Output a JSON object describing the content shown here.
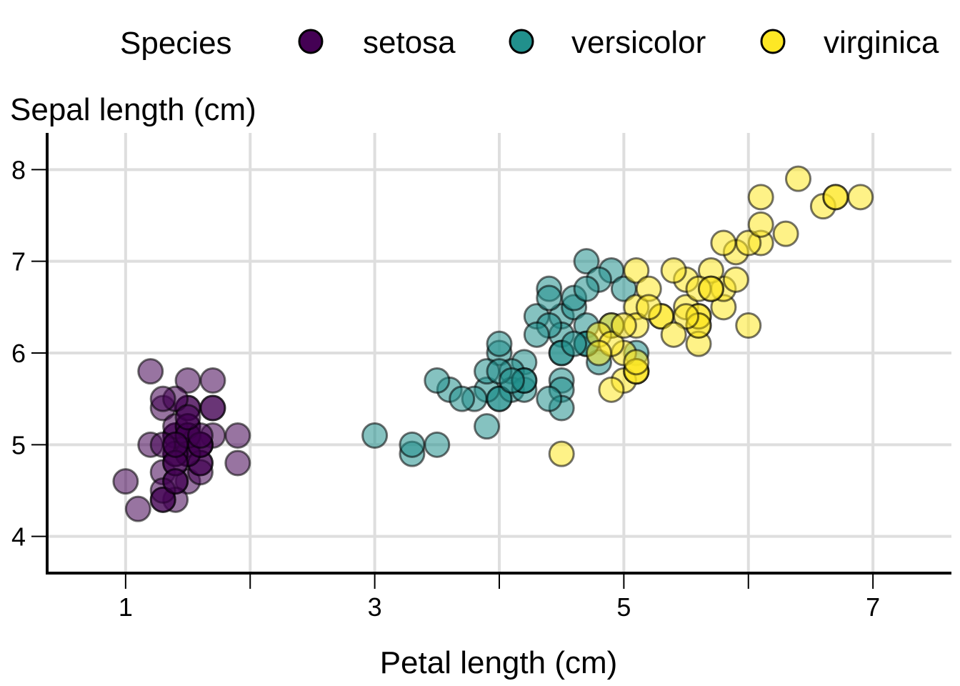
{
  "chart_data": {
    "type": "scatter",
    "xlabel": "Petal length (cm)",
    "ylabel": "Sepal length (cm)",
    "xlim": [
      0.37,
      7.63
    ],
    "ylim": [
      3.6,
      8.4
    ],
    "xticks": [
      1,
      3,
      5,
      7
    ],
    "xticks_minor": [
      2,
      4,
      6
    ],
    "yticks": [
      4,
      5,
      6,
      7,
      8
    ],
    "grid": true,
    "legend": {
      "title": "Species",
      "position": "top",
      "entries": [
        "setosa",
        "versicolor",
        "virginica"
      ]
    },
    "colors": {
      "setosa": "#440154",
      "versicolor": "#21908C",
      "virginica": "#FDE725"
    },
    "series": [
      {
        "name": "setosa",
        "x": [
          1.4,
          1.4,
          1.3,
          1.5,
          1.4,
          1.7,
          1.4,
          1.5,
          1.4,
          1.5,
          1.5,
          1.6,
          1.4,
          1.1,
          1.2,
          1.5,
          1.3,
          1.4,
          1.7,
          1.5,
          1.7,
          1.5,
          1.0,
          1.7,
          1.9,
          1.6,
          1.6,
          1.5,
          1.4,
          1.6,
          1.6,
          1.5,
          1.5,
          1.4,
          1.5,
          1.2,
          1.3,
          1.4,
          1.3,
          1.5,
          1.3,
          1.3,
          1.3,
          1.6,
          1.9,
          1.4,
          1.6,
          1.4,
          1.5,
          1.4
        ],
        "y": [
          5.1,
          4.9,
          4.7,
          4.6,
          5.0,
          5.4,
          4.6,
          5.0,
          4.4,
          4.9,
          5.4,
          4.8,
          4.8,
          4.3,
          5.8,
          5.7,
          5.4,
          5.1,
          5.7,
          5.1,
          5.4,
          5.1,
          4.6,
          5.1,
          4.8,
          5.0,
          5.0,
          5.2,
          5.2,
          4.7,
          4.8,
          5.4,
          5.2,
          5.5,
          4.9,
          5.0,
          5.5,
          4.9,
          4.4,
          5.1,
          5.0,
          4.5,
          4.4,
          5.0,
          5.1,
          4.8,
          5.1,
          4.6,
          5.3,
          5.0
        ]
      },
      {
        "name": "versicolor",
        "x": [
          4.7,
          4.5,
          4.9,
          4.0,
          4.6,
          4.5,
          4.7,
          3.3,
          4.6,
          3.9,
          3.5,
          4.2,
          4.0,
          4.7,
          3.6,
          4.4,
          4.5,
          4.1,
          4.5,
          3.9,
          4.8,
          4.0,
          4.9,
          4.7,
          4.3,
          4.4,
          4.8,
          5.0,
          4.5,
          3.5,
          3.8,
          3.7,
          3.9,
          5.1,
          4.5,
          4.5,
          4.7,
          4.4,
          4.1,
          4.0,
          4.4,
          4.6,
          4.0,
          3.3,
          4.2,
          4.2,
          4.2,
          4.3,
          3.0,
          4.1
        ],
        "y": [
          7.0,
          6.4,
          6.9,
          5.5,
          6.5,
          5.7,
          6.3,
          4.9,
          6.6,
          5.2,
          5.0,
          5.9,
          6.0,
          6.1,
          5.6,
          6.7,
          5.6,
          5.8,
          6.2,
          5.6,
          5.9,
          6.1,
          6.3,
          6.1,
          6.4,
          6.6,
          6.8,
          6.7,
          6.0,
          5.7,
          5.5,
          5.5,
          5.8,
          6.0,
          5.4,
          6.0,
          6.7,
          6.3,
          5.6,
          5.5,
          5.5,
          6.1,
          5.8,
          5.0,
          5.6,
          5.7,
          5.7,
          6.2,
          5.1,
          5.7
        ]
      },
      {
        "name": "virginica",
        "x": [
          6.0,
          5.1,
          5.9,
          5.6,
          5.8,
          6.6,
          4.5,
          6.3,
          5.8,
          6.1,
          5.1,
          5.3,
          5.5,
          5.0,
          5.1,
          5.3,
          5.5,
          6.7,
          6.9,
          5.0,
          5.7,
          4.9,
          6.7,
          4.9,
          5.7,
          6.0,
          4.8,
          4.9,
          5.6,
          5.8,
          6.1,
          6.4,
          5.6,
          5.1,
          5.6,
          6.1,
          5.6,
          5.5,
          4.8,
          5.4,
          5.6,
          5.1,
          5.1,
          5.9,
          5.7,
          5.2,
          5.0,
          5.2,
          5.4,
          5.1
        ],
        "y": [
          6.3,
          5.8,
          7.1,
          6.3,
          6.5,
          7.6,
          4.9,
          7.3,
          6.7,
          7.2,
          6.5,
          6.4,
          6.8,
          5.7,
          5.8,
          6.4,
          6.5,
          7.7,
          7.7,
          6.0,
          6.9,
          5.6,
          7.7,
          6.3,
          6.7,
          7.2,
          6.2,
          6.1,
          6.4,
          7.2,
          7.4,
          7.9,
          6.4,
          6.3,
          6.1,
          7.7,
          6.3,
          6.4,
          6.0,
          6.9,
          6.7,
          6.9,
          5.8,
          6.8,
          6.7,
          6.7,
          6.3,
          6.5,
          6.2,
          5.9
        ]
      }
    ]
  }
}
